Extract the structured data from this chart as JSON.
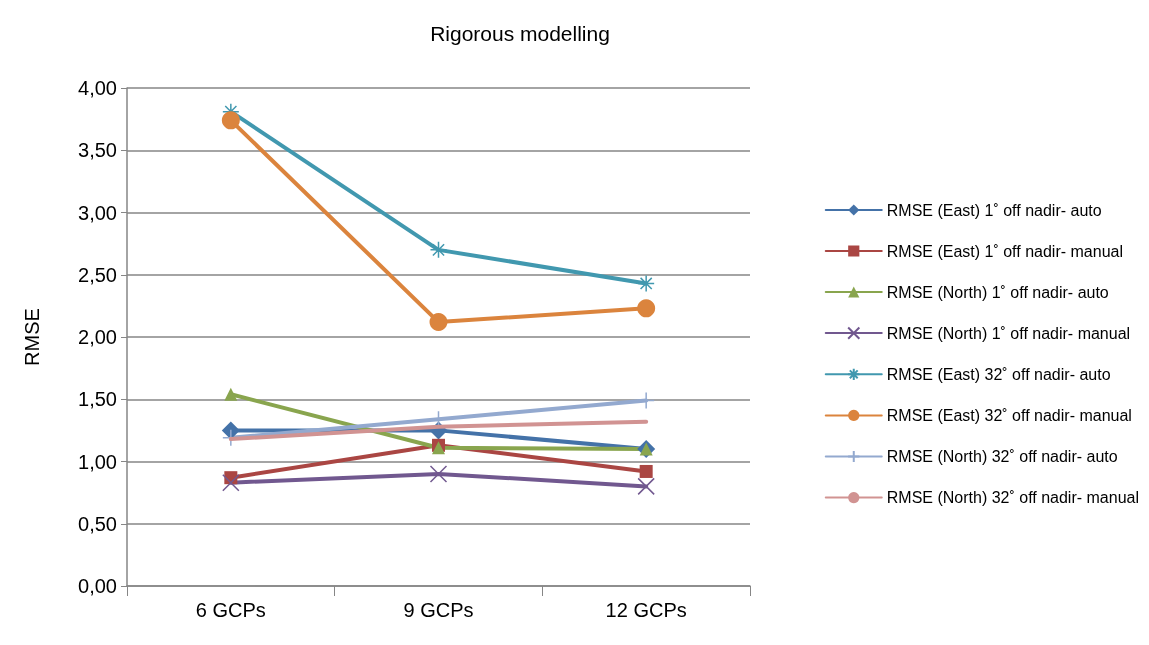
{
  "chart_data": {
    "type": "line",
    "title": "Rigorous modelling",
    "ylabel": "RMSE",
    "categories": [
      "6 GCPs",
      "9 GCPs",
      "12 GCPs"
    ],
    "ylim": [
      0,
      4
    ],
    "yticks": [
      {
        "value": 0,
        "label": "0,00"
      },
      {
        "value": 0.5,
        "label": "0,50"
      },
      {
        "value": 1,
        "label": "1,00"
      },
      {
        "value": 1.5,
        "label": "1,50"
      },
      {
        "value": 2,
        "label": "2,00"
      },
      {
        "value": 2.5,
        "label": "2,50"
      },
      {
        "value": 3,
        "label": "3,00"
      },
      {
        "value": 3.5,
        "label": "3,50"
      },
      {
        "value": 4,
        "label": "4,00"
      }
    ],
    "grid": "y",
    "legend": "right",
    "line_style": "solid",
    "series": [
      {
        "name": "RMSE (East) 1˚ off nadir- auto",
        "color": "#4472a8",
        "marker": "diamond",
        "values": [
          1.25,
          1.25,
          1.1
        ]
      },
      {
        "name": "RMSE (East) 1˚ off nadir- manual",
        "color": "#aa4643",
        "marker": "square",
        "values": [
          0.87,
          1.13,
          0.92
        ]
      },
      {
        "name": "RMSE (North) 1˚ off nadir- auto",
        "color": "#89a54e",
        "marker": "triangle",
        "values": [
          1.54,
          1.11,
          1.1
        ]
      },
      {
        "name": "RMSE (North) 1˚ off nadir- manual",
        "color": "#71588f",
        "marker": "cross",
        "values": [
          0.83,
          0.9,
          0.8
        ]
      },
      {
        "name": "RMSE (East) 32˚ off nadir- auto",
        "color": "#4198af",
        "marker": "cross",
        "values": [
          3.81,
          2.7,
          2.43
        ]
      },
      {
        "name": "RMSE (East) 32˚ off nadir- manual",
        "color": "#db843d",
        "marker": "circle",
        "values": [
          3.74,
          2.12,
          2.23
        ]
      },
      {
        "name": "RMSE (North) 32˚ off nadir- auto",
        "color": "#93a9cf",
        "marker": "cross",
        "values": [
          1.19,
          1.34,
          1.49
        ]
      },
      {
        "name": "RMSE (North) 32˚ off nadir- manual",
        "color": "#d19392",
        "marker": "none",
        "values": [
          1.18,
          1.28,
          1.32
        ]
      }
    ]
  }
}
